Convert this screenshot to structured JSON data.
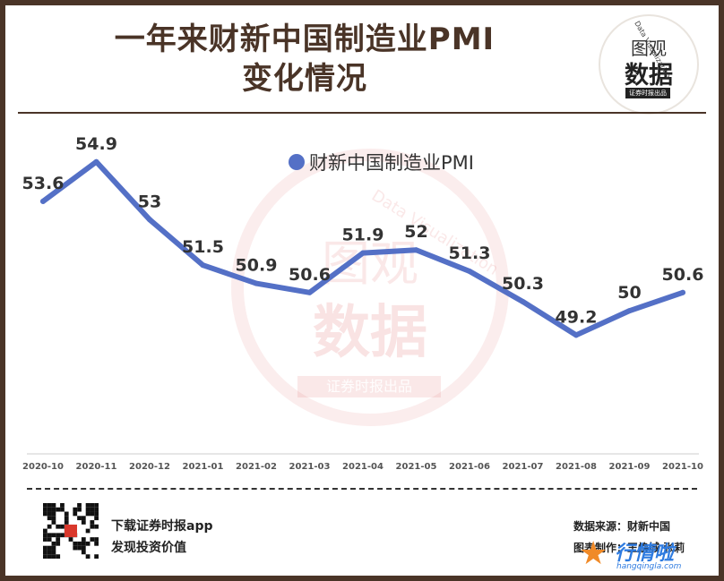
{
  "header": {
    "title_line1": "一年来财新中国制造业PMI",
    "title_line2": "变化情况"
  },
  "logo": {
    "top": "图观",
    "mid": "数据",
    "bottom": "证券时报出品",
    "arc": "Data Visualization"
  },
  "watermark": {
    "top": "图观",
    "mid": "数据",
    "bottom": "证券时报出品",
    "arc": "Data Visualization"
  },
  "colors": {
    "line": "#5470c6",
    "border": "#4a3427"
  },
  "chart_data": {
    "type": "line",
    "title": "一年来财新中国制造业PMI变化情况",
    "categories": [
      "2020-10",
      "2020-11",
      "2020-12",
      "2021-01",
      "2021-02",
      "2021-03",
      "2021-04",
      "2021-05",
      "2021-06",
      "2021-07",
      "2021-08",
      "2021-09",
      "2021-10"
    ],
    "series": [
      {
        "name": "财新中国制造业PMI",
        "values": [
          53.6,
          54.9,
          53,
          51.5,
          50.9,
          50.6,
          51.9,
          52,
          51.3,
          50.3,
          49.2,
          50,
          50.6
        ]
      }
    ],
    "legend": "top-center",
    "ylim": [
      46.5,
      55.6
    ],
    "grid": false,
    "xlabel": "",
    "ylabel": ""
  },
  "footer": {
    "download": "下载证券时报app",
    "slogan": "发现投资价值",
    "source": "数据来源：财新中国",
    "author": "图表制作：王焕城 张莉",
    "brand": "行情啦",
    "brand_url": "hangqingla.com"
  }
}
